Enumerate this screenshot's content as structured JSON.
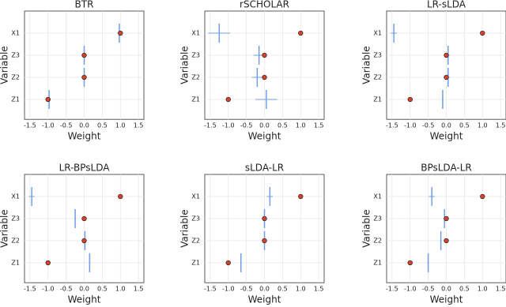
{
  "chart_data": [
    {
      "type": "dot",
      "title": "BTR",
      "x_label": "Weight",
      "y_label": "Variable",
      "categories": [
        "Z1",
        "Z2",
        "Z3",
        "X1"
      ],
      "xlim": [
        -1.65,
        1.65
      ],
      "xticks": [
        -1.5,
        {
          "value": -1,
          "label": "-1.0"
        },
        -0.5,
        {
          "value": 0,
          "label": "0.0"
        },
        0.5,
        {
          "value": 1,
          "label": "1.0"
        },
        1.5
      ],
      "grid": true,
      "series": [
        {
          "color": "#6f9ee6",
          "values": [
            -0.97,
            0,
            0,
            0.97
          ],
          "errors": [
            0.04,
            0.02,
            0.02,
            0.05
          ]
        },
        {
          "color": "#d9412b",
          "values": [
            -1,
            0,
            0,
            1
          ]
        }
      ]
    },
    {
      "type": "dot",
      "title": "rSCHOLAR",
      "x_label": "Weight",
      "y_label": "Variable",
      "categories": [
        "Z1",
        "Z2",
        "Z3",
        "X1"
      ],
      "xlim": [
        -1.65,
        1.65
      ],
      "xticks": [
        -1.5,
        {
          "value": -1,
          "label": "-1.0"
        },
        -0.5,
        {
          "value": 0,
          "label": "0.0"
        },
        0.5,
        {
          "value": 1,
          "label": "1.0"
        },
        1.5
      ],
      "grid": true,
      "series": [
        {
          "color": "#6f9ee6",
          "values": [
            0.05,
            -0.2,
            -0.15,
            -1.25
          ],
          "errors": [
            0.3,
            0.15,
            0.15,
            0.3
          ]
        },
        {
          "color": "#d9412b",
          "values": [
            -1,
            0,
            0,
            1
          ]
        }
      ]
    },
    {
      "type": "dot",
      "title": "LR-sLDA",
      "x_label": "Weight",
      "y_label": "Variable",
      "categories": [
        "Z1",
        "Z2",
        "Z3",
        "X1"
      ],
      "xlim": [
        -1.65,
        1.65
      ],
      "xticks": [
        -1.5,
        {
          "value": -1,
          "label": "-1.0"
        },
        -0.5,
        {
          "value": 0,
          "label": "0.0"
        },
        0.5,
        {
          "value": 1,
          "label": "1.0"
        },
        1.5
      ],
      "grid": true,
      "series": [
        {
          "color": "#6f9ee6",
          "values": [
            -0.1,
            0.05,
            0.05,
            -1.45
          ],
          "errors": [
            0.02,
            0.04,
            0.04,
            0.08
          ]
        },
        {
          "color": "#d9412b",
          "values": [
            -1,
            0,
            0,
            1
          ]
        }
      ]
    },
    {
      "type": "dot",
      "title": "LR-BPsLDA",
      "x_label": "Weight",
      "y_label": "Variable",
      "categories": [
        "Z1",
        "Z2",
        "Z3",
        "X1"
      ],
      "xlim": [
        -1.65,
        1.65
      ],
      "xticks": [
        -1.5,
        {
          "value": -1,
          "label": "-1.0"
        },
        -0.5,
        {
          "value": 0,
          "label": "0.0"
        },
        0.5,
        {
          "value": 1,
          "label": "1.0"
        },
        1.5
      ],
      "grid": true,
      "series": [
        {
          "color": "#6f9ee6",
          "values": [
            0.15,
            0.02,
            -0.25,
            -1.45
          ],
          "errors": [
            0.02,
            0.03,
            0.02,
            0.08
          ]
        },
        {
          "color": "#d9412b",
          "values": [
            -1,
            0,
            0,
            1
          ]
        }
      ]
    },
    {
      "type": "dot",
      "title": "sLDA-LR",
      "x_label": "Weight",
      "y_label": "Variable",
      "categories": [
        "Z1",
        "Z2",
        "Z3",
        "X1"
      ],
      "xlim": [
        -1.65,
        1.65
      ],
      "xticks": [
        -1.5,
        {
          "value": -1,
          "label": "-1.0"
        },
        -0.5,
        {
          "value": 0,
          "label": "0.0"
        },
        0.5,
        {
          "value": 1,
          "label": "1.0"
        },
        1.5
      ],
      "grid": true,
      "series": [
        {
          "color": "#6f9ee6",
          "values": [
            -0.65,
            0,
            0,
            0.15
          ],
          "errors": [
            0.02,
            0.03,
            0.03,
            0.08
          ]
        },
        {
          "color": "#d9412b",
          "values": [
            -1,
            0,
            0,
            1
          ]
        }
      ]
    },
    {
      "type": "dot",
      "title": "BPsLDA-LR",
      "x_label": "Weight",
      "y_label": "Variable",
      "categories": [
        "Z1",
        "Z2",
        "Z3",
        "X1"
      ],
      "xlim": [
        -1.65,
        1.65
      ],
      "xticks": [
        -1.5,
        {
          "value": -1,
          "label": "-1.0"
        },
        -0.5,
        {
          "value": 0,
          "label": "0.0"
        },
        0.5,
        {
          "value": 1,
          "label": "1.0"
        },
        1.5
      ],
      "grid": true,
      "series": [
        {
          "color": "#6f9ee6",
          "values": [
            -0.5,
            -0.15,
            -0.05,
            -0.4
          ],
          "errors": [
            0.02,
            0.02,
            0.03,
            0.08
          ]
        },
        {
          "color": "#d9412b",
          "values": [
            -1,
            0,
            0,
            1
          ]
        }
      ]
    }
  ]
}
